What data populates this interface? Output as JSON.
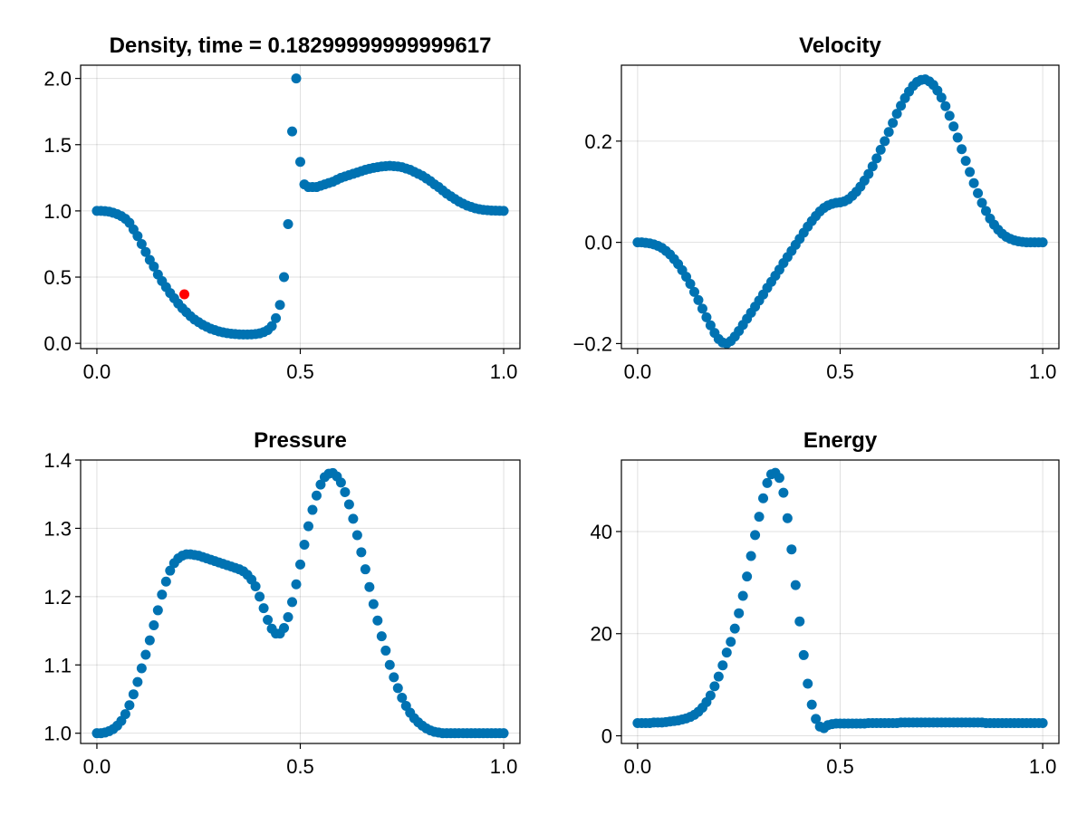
{
  "figure": {
    "marker_color": "#0072b2",
    "highlight_color": "#ff0000"
  },
  "chart_data": [
    {
      "type": "scatter",
      "title": "Density, time = 0.18299999999999617",
      "xlabel": "",
      "ylabel": "",
      "xlim": [
        -0.04,
        1.04
      ],
      "ylim": [
        -0.04,
        2.1
      ],
      "xticks": [
        0.0,
        0.5,
        1.0
      ],
      "xtick_labels": [
        "0.0",
        "0.5",
        "1.0"
      ],
      "yticks": [
        0.0,
        0.5,
        1.0,
        1.5,
        2.0
      ],
      "ytick_labels": [
        "0.0",
        "0.5",
        "1.0",
        "1.5",
        "2.0"
      ],
      "grid": true,
      "highlight": {
        "x": 0.215,
        "y": 0.37
      },
      "series": [
        {
          "x": [
            0.0,
            0.01,
            0.02,
            0.03,
            0.04,
            0.05,
            0.06,
            0.07,
            0.08,
            0.09,
            0.1,
            0.11,
            0.12,
            0.13,
            0.14,
            0.15,
            0.16,
            0.17,
            0.18,
            0.19,
            0.2,
            0.21,
            0.22,
            0.23,
            0.24,
            0.25,
            0.26,
            0.27,
            0.28,
            0.29,
            0.3,
            0.31,
            0.32,
            0.33,
            0.34,
            0.35,
            0.36,
            0.37,
            0.38,
            0.39,
            0.4,
            0.41,
            0.42,
            0.43,
            0.44,
            0.45,
            0.46,
            0.47,
            0.48,
            0.49,
            0.5,
            0.51,
            0.52,
            0.53,
            0.54,
            0.55,
            0.56,
            0.57,
            0.58,
            0.59,
            0.6,
            0.61,
            0.62,
            0.63,
            0.64,
            0.65,
            0.66,
            0.67,
            0.68,
            0.69,
            0.7,
            0.71,
            0.72,
            0.73,
            0.74,
            0.75,
            0.76,
            0.77,
            0.78,
            0.79,
            0.8,
            0.81,
            0.82,
            0.83,
            0.84,
            0.85,
            0.86,
            0.87,
            0.88,
            0.89,
            0.9,
            0.91,
            0.92,
            0.93,
            0.94,
            0.95,
            0.96,
            0.97,
            0.98,
            0.99,
            1.0
          ],
          "y": [
            1.0,
            1.0,
            0.998,
            0.994,
            0.986,
            0.975,
            0.961,
            0.94,
            0.91,
            0.86,
            0.81,
            0.75,
            0.69,
            0.63,
            0.58,
            0.52,
            0.47,
            0.425,
            0.38,
            0.34,
            0.3,
            0.265,
            0.235,
            0.205,
            0.18,
            0.16,
            0.14,
            0.125,
            0.11,
            0.1,
            0.09,
            0.083,
            0.077,
            0.073,
            0.07,
            0.068,
            0.067,
            0.067,
            0.068,
            0.07,
            0.075,
            0.085,
            0.1,
            0.13,
            0.19,
            0.29,
            0.5,
            0.9,
            1.6,
            2.0,
            1.37,
            1.2,
            1.18,
            1.18,
            1.18,
            1.19,
            1.2,
            1.21,
            1.22,
            1.235,
            1.25,
            1.26,
            1.27,
            1.28,
            1.29,
            1.3,
            1.31,
            1.318,
            1.325,
            1.33,
            1.335,
            1.338,
            1.34,
            1.338,
            1.335,
            1.33,
            1.32,
            1.31,
            1.295,
            1.28,
            1.265,
            1.245,
            1.225,
            1.2,
            1.18,
            1.155,
            1.13,
            1.11,
            1.09,
            1.07,
            1.055,
            1.04,
            1.03,
            1.02,
            1.013,
            1.008,
            1.005,
            1.003,
            1.002,
            1.001,
            1.0
          ]
        }
      ]
    },
    {
      "type": "scatter",
      "title": "Velocity",
      "xlabel": "",
      "ylabel": "",
      "xlim": [
        -0.04,
        1.04
      ],
      "ylim": [
        -0.21,
        0.35
      ],
      "xticks": [
        0.0,
        0.5,
        1.0
      ],
      "xtick_labels": [
        "0.0",
        "0.5",
        "1.0"
      ],
      "yticks": [
        -0.2,
        0.0,
        0.2
      ],
      "ytick_labels": [
        "−0.2",
        "0.0",
        "0.2"
      ],
      "grid": true,
      "series": [
        {
          "x": [
            0.0,
            0.01,
            0.02,
            0.03,
            0.04,
            0.05,
            0.06,
            0.07,
            0.08,
            0.09,
            0.1,
            0.11,
            0.12,
            0.13,
            0.14,
            0.15,
            0.16,
            0.17,
            0.18,
            0.19,
            0.2,
            0.21,
            0.22,
            0.23,
            0.24,
            0.25,
            0.26,
            0.27,
            0.28,
            0.29,
            0.3,
            0.31,
            0.32,
            0.33,
            0.34,
            0.35,
            0.36,
            0.37,
            0.38,
            0.39,
            0.4,
            0.41,
            0.42,
            0.43,
            0.44,
            0.45,
            0.46,
            0.47,
            0.48,
            0.49,
            0.5,
            0.51,
            0.52,
            0.53,
            0.54,
            0.55,
            0.56,
            0.57,
            0.58,
            0.59,
            0.6,
            0.61,
            0.62,
            0.63,
            0.64,
            0.65,
            0.66,
            0.67,
            0.68,
            0.69,
            0.7,
            0.71,
            0.72,
            0.73,
            0.74,
            0.75,
            0.76,
            0.77,
            0.78,
            0.79,
            0.8,
            0.81,
            0.82,
            0.83,
            0.84,
            0.85,
            0.86,
            0.87,
            0.88,
            0.89,
            0.9,
            0.91,
            0.92,
            0.93,
            0.94,
            0.95,
            0.96,
            0.97,
            0.98,
            0.99,
            1.0
          ],
          "y": [
            0.0,
            0.0,
            -0.001,
            -0.002,
            -0.004,
            -0.007,
            -0.011,
            -0.017,
            -0.024,
            -0.033,
            -0.043,
            -0.055,
            -0.068,
            -0.082,
            -0.098,
            -0.114,
            -0.131,
            -0.148,
            -0.164,
            -0.179,
            -0.191,
            -0.198,
            -0.2,
            -0.195,
            -0.186,
            -0.175,
            -0.163,
            -0.151,
            -0.139,
            -0.127,
            -0.115,
            -0.103,
            -0.09,
            -0.078,
            -0.066,
            -0.054,
            -0.041,
            -0.029,
            -0.017,
            -0.005,
            0.007,
            0.019,
            0.031,
            0.042,
            0.052,
            0.061,
            0.068,
            0.073,
            0.076,
            0.078,
            0.079,
            0.081,
            0.085,
            0.092,
            0.1,
            0.11,
            0.122,
            0.135,
            0.15,
            0.166,
            0.183,
            0.2,
            0.218,
            0.236,
            0.254,
            0.27,
            0.285,
            0.298,
            0.309,
            0.317,
            0.321,
            0.322,
            0.318,
            0.311,
            0.3,
            0.286,
            0.269,
            0.25,
            0.229,
            0.207,
            0.184,
            0.161,
            0.139,
            0.117,
            0.097,
            0.078,
            0.062,
            0.047,
            0.035,
            0.025,
            0.017,
            0.011,
            0.007,
            0.004,
            0.002,
            0.001,
            0.0,
            0.0,
            0.0,
            0.0,
            0.0
          ]
        }
      ]
    },
    {
      "type": "scatter",
      "title": "Pressure",
      "xlabel": "",
      "ylabel": "",
      "xlim": [
        -0.04,
        1.04
      ],
      "ylim": [
        0.985,
        1.4
      ],
      "xticks": [
        0.0,
        0.5,
        1.0
      ],
      "xtick_labels": [
        "0.0",
        "0.5",
        "1.0"
      ],
      "yticks": [
        1.0,
        1.1,
        1.2,
        1.3,
        1.4
      ],
      "ytick_labels": [
        "1.0",
        "1.1",
        "1.2",
        "1.3",
        "1.4"
      ],
      "grid": true,
      "series": [
        {
          "x": [
            0.0,
            0.01,
            0.02,
            0.03,
            0.04,
            0.05,
            0.06,
            0.07,
            0.08,
            0.09,
            0.1,
            0.11,
            0.12,
            0.13,
            0.14,
            0.15,
            0.16,
            0.17,
            0.18,
            0.19,
            0.2,
            0.21,
            0.22,
            0.23,
            0.24,
            0.25,
            0.26,
            0.27,
            0.28,
            0.29,
            0.3,
            0.31,
            0.32,
            0.33,
            0.34,
            0.35,
            0.36,
            0.37,
            0.38,
            0.39,
            0.4,
            0.41,
            0.42,
            0.43,
            0.44,
            0.45,
            0.46,
            0.47,
            0.48,
            0.49,
            0.5,
            0.51,
            0.52,
            0.53,
            0.54,
            0.55,
            0.56,
            0.57,
            0.58,
            0.59,
            0.6,
            0.61,
            0.62,
            0.63,
            0.64,
            0.65,
            0.66,
            0.67,
            0.68,
            0.69,
            0.7,
            0.71,
            0.72,
            0.73,
            0.74,
            0.75,
            0.76,
            0.77,
            0.78,
            0.79,
            0.8,
            0.81,
            0.82,
            0.83,
            0.84,
            0.85,
            0.86,
            0.87,
            0.88,
            0.89,
            0.9,
            0.91,
            0.92,
            0.93,
            0.94,
            0.95,
            0.96,
            0.97,
            0.98,
            0.99,
            1.0
          ],
          "y": [
            1.0,
            1.0,
            1.001,
            1.003,
            1.006,
            1.011,
            1.018,
            1.028,
            1.041,
            1.057,
            1.075,
            1.095,
            1.115,
            1.136,
            1.158,
            1.18,
            1.203,
            1.222,
            1.238,
            1.249,
            1.256,
            1.26,
            1.262,
            1.262,
            1.261,
            1.26,
            1.258,
            1.256,
            1.254,
            1.252,
            1.25,
            1.248,
            1.246,
            1.244,
            1.242,
            1.24,
            1.237,
            1.232,
            1.225,
            1.215,
            1.2,
            1.183,
            1.166,
            1.153,
            1.146,
            1.146,
            1.154,
            1.17,
            1.192,
            1.218,
            1.247,
            1.276,
            1.303,
            1.327,
            1.348,
            1.364,
            1.375,
            1.38,
            1.381,
            1.376,
            1.367,
            1.353,
            1.335,
            1.314,
            1.29,
            1.265,
            1.24,
            1.214,
            1.189,
            1.165,
            1.142,
            1.121,
            1.1,
            1.082,
            1.066,
            1.052,
            1.04,
            1.03,
            1.022,
            1.016,
            1.011,
            1.007,
            1.004,
            1.002,
            1.001,
            1.0,
            1.0,
            1.0,
            1.0,
            1.0,
            1.0,
            1.0,
            1.0,
            1.0,
            1.0,
            1.0,
            1.0,
            1.0,
            1.0,
            1.0,
            1.0
          ]
        }
      ]
    },
    {
      "type": "scatter",
      "title": "Energy",
      "xlabel": "",
      "ylabel": "",
      "xlim": [
        -0.04,
        1.04
      ],
      "ylim": [
        -1.5,
        54
      ],
      "xticks": [
        0.0,
        0.5,
        1.0
      ],
      "xtick_labels": [
        "0.0",
        "0.5",
        "1.0"
      ],
      "yticks": [
        0,
        20,
        40
      ],
      "ytick_labels": [
        "0",
        "20",
        "40"
      ],
      "grid": true,
      "series": [
        {
          "x": [
            0.0,
            0.01,
            0.02,
            0.03,
            0.04,
            0.05,
            0.06,
            0.07,
            0.08,
            0.09,
            0.1,
            0.11,
            0.12,
            0.13,
            0.14,
            0.15,
            0.16,
            0.17,
            0.18,
            0.19,
            0.2,
            0.21,
            0.22,
            0.23,
            0.24,
            0.25,
            0.26,
            0.27,
            0.28,
            0.29,
            0.3,
            0.31,
            0.32,
            0.33,
            0.34,
            0.35,
            0.36,
            0.37,
            0.38,
            0.39,
            0.4,
            0.41,
            0.42,
            0.43,
            0.44,
            0.45,
            0.46,
            0.47,
            0.48,
            0.49,
            0.5,
            0.51,
            0.52,
            0.53,
            0.54,
            0.55,
            0.56,
            0.57,
            0.58,
            0.59,
            0.6,
            0.61,
            0.62,
            0.63,
            0.64,
            0.65,
            0.66,
            0.67,
            0.68,
            0.69,
            0.7,
            0.71,
            0.72,
            0.73,
            0.74,
            0.75,
            0.76,
            0.77,
            0.78,
            0.79,
            0.8,
            0.81,
            0.82,
            0.83,
            0.84,
            0.85,
            0.86,
            0.87,
            0.88,
            0.89,
            0.9,
            0.91,
            0.92,
            0.93,
            0.94,
            0.95,
            0.96,
            0.97,
            0.98,
            0.99,
            1.0
          ],
          "y": [
            2.5,
            2.5,
            2.5,
            2.5,
            2.6,
            2.6,
            2.6,
            2.7,
            2.8,
            2.9,
            3.0,
            3.2,
            3.4,
            3.7,
            4.1,
            4.7,
            5.5,
            6.6,
            7.9,
            9.7,
            11.6,
            13.8,
            16.3,
            18.4,
            21.0,
            24.0,
            27.4,
            31.2,
            35.2,
            39.3,
            42.9,
            46.5,
            49.5,
            51.2,
            51.5,
            50.5,
            47.6,
            42.6,
            36.5,
            29.5,
            22.4,
            15.8,
            10.2,
            6.1,
            3.3,
            1.8,
            1.5,
            2.1,
            2.3,
            2.4,
            2.4,
            2.4,
            2.4,
            2.4,
            2.4,
            2.4,
            2.4,
            2.5,
            2.5,
            2.5,
            2.5,
            2.5,
            2.5,
            2.5,
            2.5,
            2.6,
            2.6,
            2.6,
            2.6,
            2.6,
            2.6,
            2.6,
            2.6,
            2.6,
            2.6,
            2.6,
            2.6,
            2.6,
            2.6,
            2.6,
            2.6,
            2.6,
            2.6,
            2.6,
            2.6,
            2.6,
            2.5,
            2.5,
            2.5,
            2.5,
            2.5,
            2.5,
            2.5,
            2.5,
            2.5,
            2.5,
            2.5,
            2.5,
            2.5,
            2.5,
            2.5
          ]
        }
      ]
    }
  ]
}
